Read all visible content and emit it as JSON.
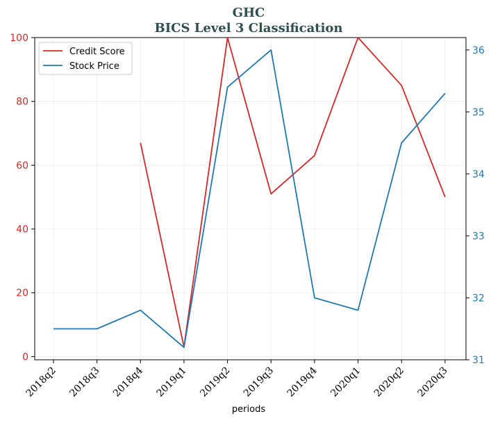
{
  "chart_data": {
    "type": "line",
    "title": "GHC",
    "subtitle": "BICS Level 3 Classification",
    "xlabel": "periods",
    "categories": [
      "2018q2",
      "2018q3",
      "2018q4",
      "2019q1",
      "2019q2",
      "2019q3",
      "2019q4",
      "2020q1",
      "2020q2",
      "2020q3"
    ],
    "y_left": {
      "ylim": [
        -1,
        100
      ],
      "ticks": [
        0,
        20,
        40,
        60,
        80,
        100
      ],
      "color": "#d62728"
    },
    "y_right": {
      "ylim": [
        31.0,
        36.2
      ],
      "ticks": [
        31,
        32,
        33,
        34,
        35,
        36
      ],
      "color": "#1f77b4"
    },
    "series": [
      {
        "name": "Credit Score",
        "axis": "left",
        "color": "#d62728",
        "values": [
          null,
          null,
          67,
          3,
          100,
          51,
          63,
          100,
          85,
          50
        ]
      },
      {
        "name": "Stock Price",
        "axis": "right",
        "color": "#1f77b4",
        "values": [
          31.5,
          31.5,
          31.8,
          31.2,
          35.4,
          36.0,
          32.0,
          31.8,
          34.5,
          35.3
        ]
      }
    ],
    "grid": true,
    "legend": "top-left"
  }
}
